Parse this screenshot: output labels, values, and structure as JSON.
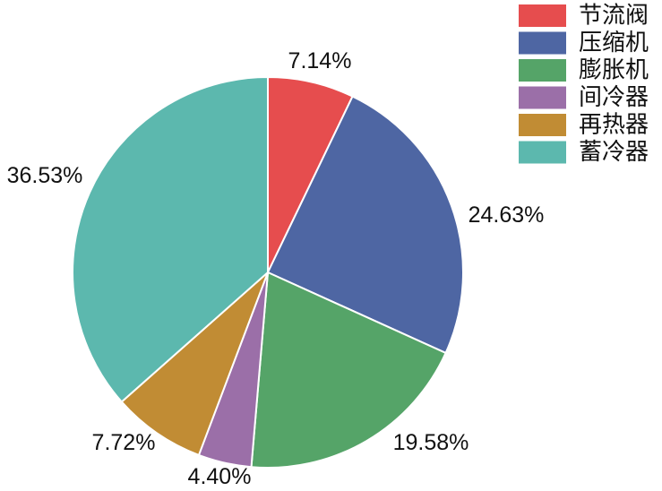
{
  "chart_data": {
    "type": "pie",
    "title": "",
    "slices": [
      {
        "label": "节流阀",
        "value": 7.14,
        "display": "7.14%",
        "color": "#E64D4E"
      },
      {
        "label": "压缩机",
        "value": 24.63,
        "display": "24.63%",
        "color": "#4E66A3"
      },
      {
        "label": "膨胀机",
        "value": 19.58,
        "display": "19.58%",
        "color": "#55A468"
      },
      {
        "label": "间冷器",
        "value": 4.4,
        "display": "4.40%",
        "color": "#9B6FA8"
      },
      {
        "label": "再热器",
        "value": 7.72,
        "display": "7.72%",
        "color": "#C18C34"
      },
      {
        "label": "蓄冷器",
        "value": 36.53,
        "display": "36.53%",
        "color": "#5CB8AE"
      }
    ],
    "legend_position": "top-right",
    "start_angle": "12 o'clock",
    "direction": "clockwise"
  }
}
